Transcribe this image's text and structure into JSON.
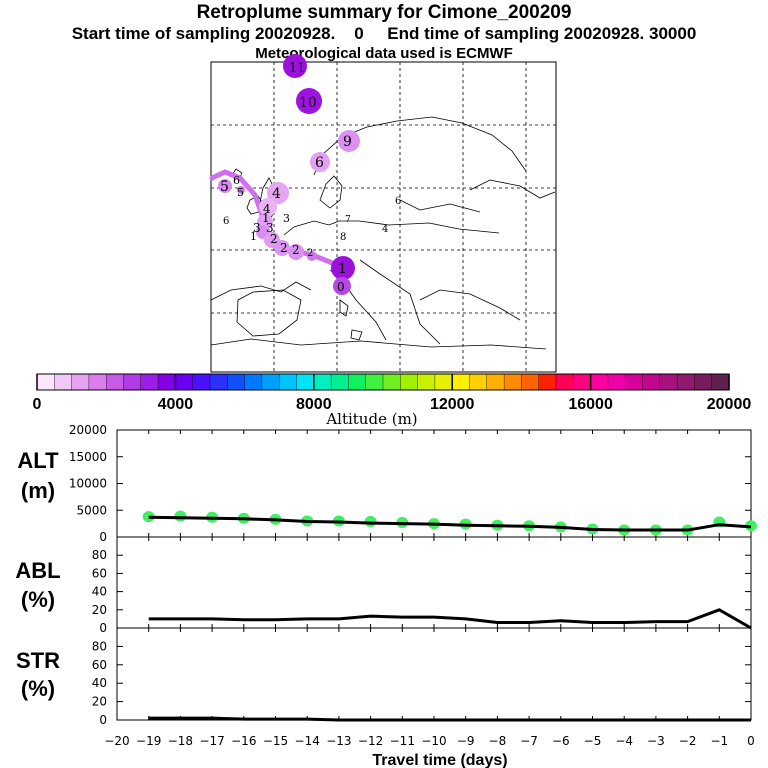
{
  "header": {
    "title": "Retroplume summary for Cimone_200209",
    "subtitle": "Start time of sampling 20020928.    0     End time of sampling 20020928. 30000",
    "subtitle2": "Meteorological data used is ECMWF"
  },
  "colors": {
    "altitude_dots": "#3fef5f",
    "line": "#000000",
    "plume_light": "#e49cf2",
    "plume_dark": "#9a10d8"
  },
  "map": {
    "labels": [
      {
        "id": "c10",
        "text": "10",
        "color": "#9a10d8"
      },
      {
        "id": "c9",
        "text": "9",
        "color": "#d98af0"
      },
      {
        "id": "c6",
        "text": "6",
        "color": "#e29bf3"
      },
      {
        "id": "c4",
        "text": "4",
        "color": "#e4a6f4"
      },
      {
        "id": "c5",
        "text": "5",
        "color": "#dd8ef0"
      },
      {
        "id": "c1",
        "text": "1",
        "color": "#a010e0"
      },
      {
        "id": "c0",
        "text": "0",
        "color": "#b040e6"
      }
    ]
  },
  "colorbar": {
    "title": "Altitude (m)",
    "tick_labels": [
      "0",
      "4000",
      "8000",
      "12000",
      "16000",
      "20000"
    ],
    "tick_values": [
      0,
      4000,
      8000,
      12000,
      16000,
      20000
    ],
    "min": 0,
    "max": 20000,
    "colors": [
      "#fbe6fb",
      "#f2c8f6",
      "#e6a3f1",
      "#da7eec",
      "#c85ae8",
      "#b13ce6",
      "#9a1ee6",
      "#8400e8",
      "#6a00f2",
      "#4a10ff",
      "#2c30ff",
      "#1050ff",
      "#0078ff",
      "#00a0ff",
      "#00c4ff",
      "#00e4f4",
      "#00f0c0",
      "#00f090",
      "#10f060",
      "#40f040",
      "#70f020",
      "#a0f000",
      "#c8f000",
      "#e6f000",
      "#fff000",
      "#ffd000",
      "#ffb000",
      "#ff8c00",
      "#ff6400",
      "#ff2000",
      "#ff0058",
      "#ff0080",
      "#ff00a0",
      "#f000a8",
      "#d8009a",
      "#c0088e",
      "#a8107e",
      "#90186e",
      "#781c60",
      "#602050"
    ]
  },
  "chart_data": [
    {
      "type": "line",
      "name": "ALT",
      "label_line1": "ALT",
      "label_line2": "(m)",
      "x": [
        -19,
        -18,
        -17,
        -16,
        -15,
        -14,
        -13,
        -12,
        -11,
        -10,
        -9,
        -8,
        -7,
        -6,
        -5,
        -4,
        -3,
        -2,
        -1,
        0
      ],
      "values": [
        3700,
        3600,
        3500,
        3400,
        3200,
        2900,
        2800,
        2600,
        2500,
        2400,
        2200,
        2100,
        2000,
        1800,
        1400,
        1300,
        1300,
        1300,
        2300,
        1900
      ],
      "ylim": [
        0,
        20000
      ],
      "yticks": [
        0,
        5000,
        10000,
        15000,
        20000
      ],
      "ytick_labels": [
        "0",
        "5000",
        "10000",
        "15000",
        "20000"
      ],
      "dots_x": [
        -19,
        -18,
        -17,
        -16,
        -15,
        -14,
        -13,
        -12,
        -11,
        -10,
        -9,
        -8,
        -7,
        -6,
        -5,
        -4,
        -3,
        -2,
        -1,
        0
      ],
      "dots_y": [
        3800,
        3900,
        3700,
        3500,
        3300,
        3000,
        3000,
        2900,
        2700,
        2500,
        2400,
        2200,
        2100,
        1900,
        1500,
        1300,
        1300,
        1300,
        2800,
        2100
      ]
    },
    {
      "type": "line",
      "name": "ABL",
      "label_line1": "ABL",
      "label_line2": "(%)",
      "x": [
        -19,
        -18,
        -17,
        -16,
        -15,
        -14,
        -13,
        -12,
        -11,
        -10,
        -9,
        -8,
        -7,
        -6,
        -5,
        -4,
        -3,
        -2,
        -1,
        0
      ],
      "values": [
        10,
        10,
        10,
        9,
        9,
        10,
        10,
        13,
        12,
        12,
        10,
        6,
        6,
        8,
        6,
        6,
        7,
        7,
        20,
        0
      ],
      "ylim": [
        0,
        100
      ],
      "yticks": [
        0,
        20,
        40,
        60,
        80
      ],
      "ytick_labels": [
        "0",
        "20",
        "40",
        "60",
        "80"
      ]
    },
    {
      "type": "line",
      "name": "STR",
      "label_line1": "STR",
      "label_line2": "(%)",
      "x": [
        -19,
        -18,
        -17,
        -16,
        -15,
        -14,
        -13,
        -12,
        -11,
        -10,
        -9,
        -8,
        -7,
        -6,
        -5,
        -4,
        -3,
        -2,
        -1,
        0
      ],
      "values": [
        2,
        2,
        2,
        1,
        1,
        1,
        0,
        0,
        0,
        0,
        0,
        0,
        0,
        0,
        0,
        0,
        0,
        0,
        0,
        0
      ],
      "ylim": [
        0,
        100
      ],
      "yticks": [
        0,
        20,
        40,
        60,
        80
      ],
      "ytick_labels": [
        "0",
        "20",
        "40",
        "60",
        "80"
      ]
    }
  ],
  "xaxis": {
    "label": "Travel time (days)",
    "ticks": [
      -20,
      -19,
      -18,
      -17,
      -16,
      -15,
      -14,
      -13,
      -12,
      -11,
      -10,
      -9,
      -8,
      -7,
      -6,
      -5,
      -4,
      -3,
      -2,
      -1,
      0
    ],
    "tick_labels": [
      "−20",
      "−19",
      "−18",
      "−17",
      "−16",
      "−15",
      "−14",
      "−13",
      "−12",
      "−11",
      "−10",
      "−9",
      "−8",
      "−7",
      "−6",
      "−5",
      "−4",
      "−3",
      "−2",
      "−1",
      "0"
    ]
  }
}
